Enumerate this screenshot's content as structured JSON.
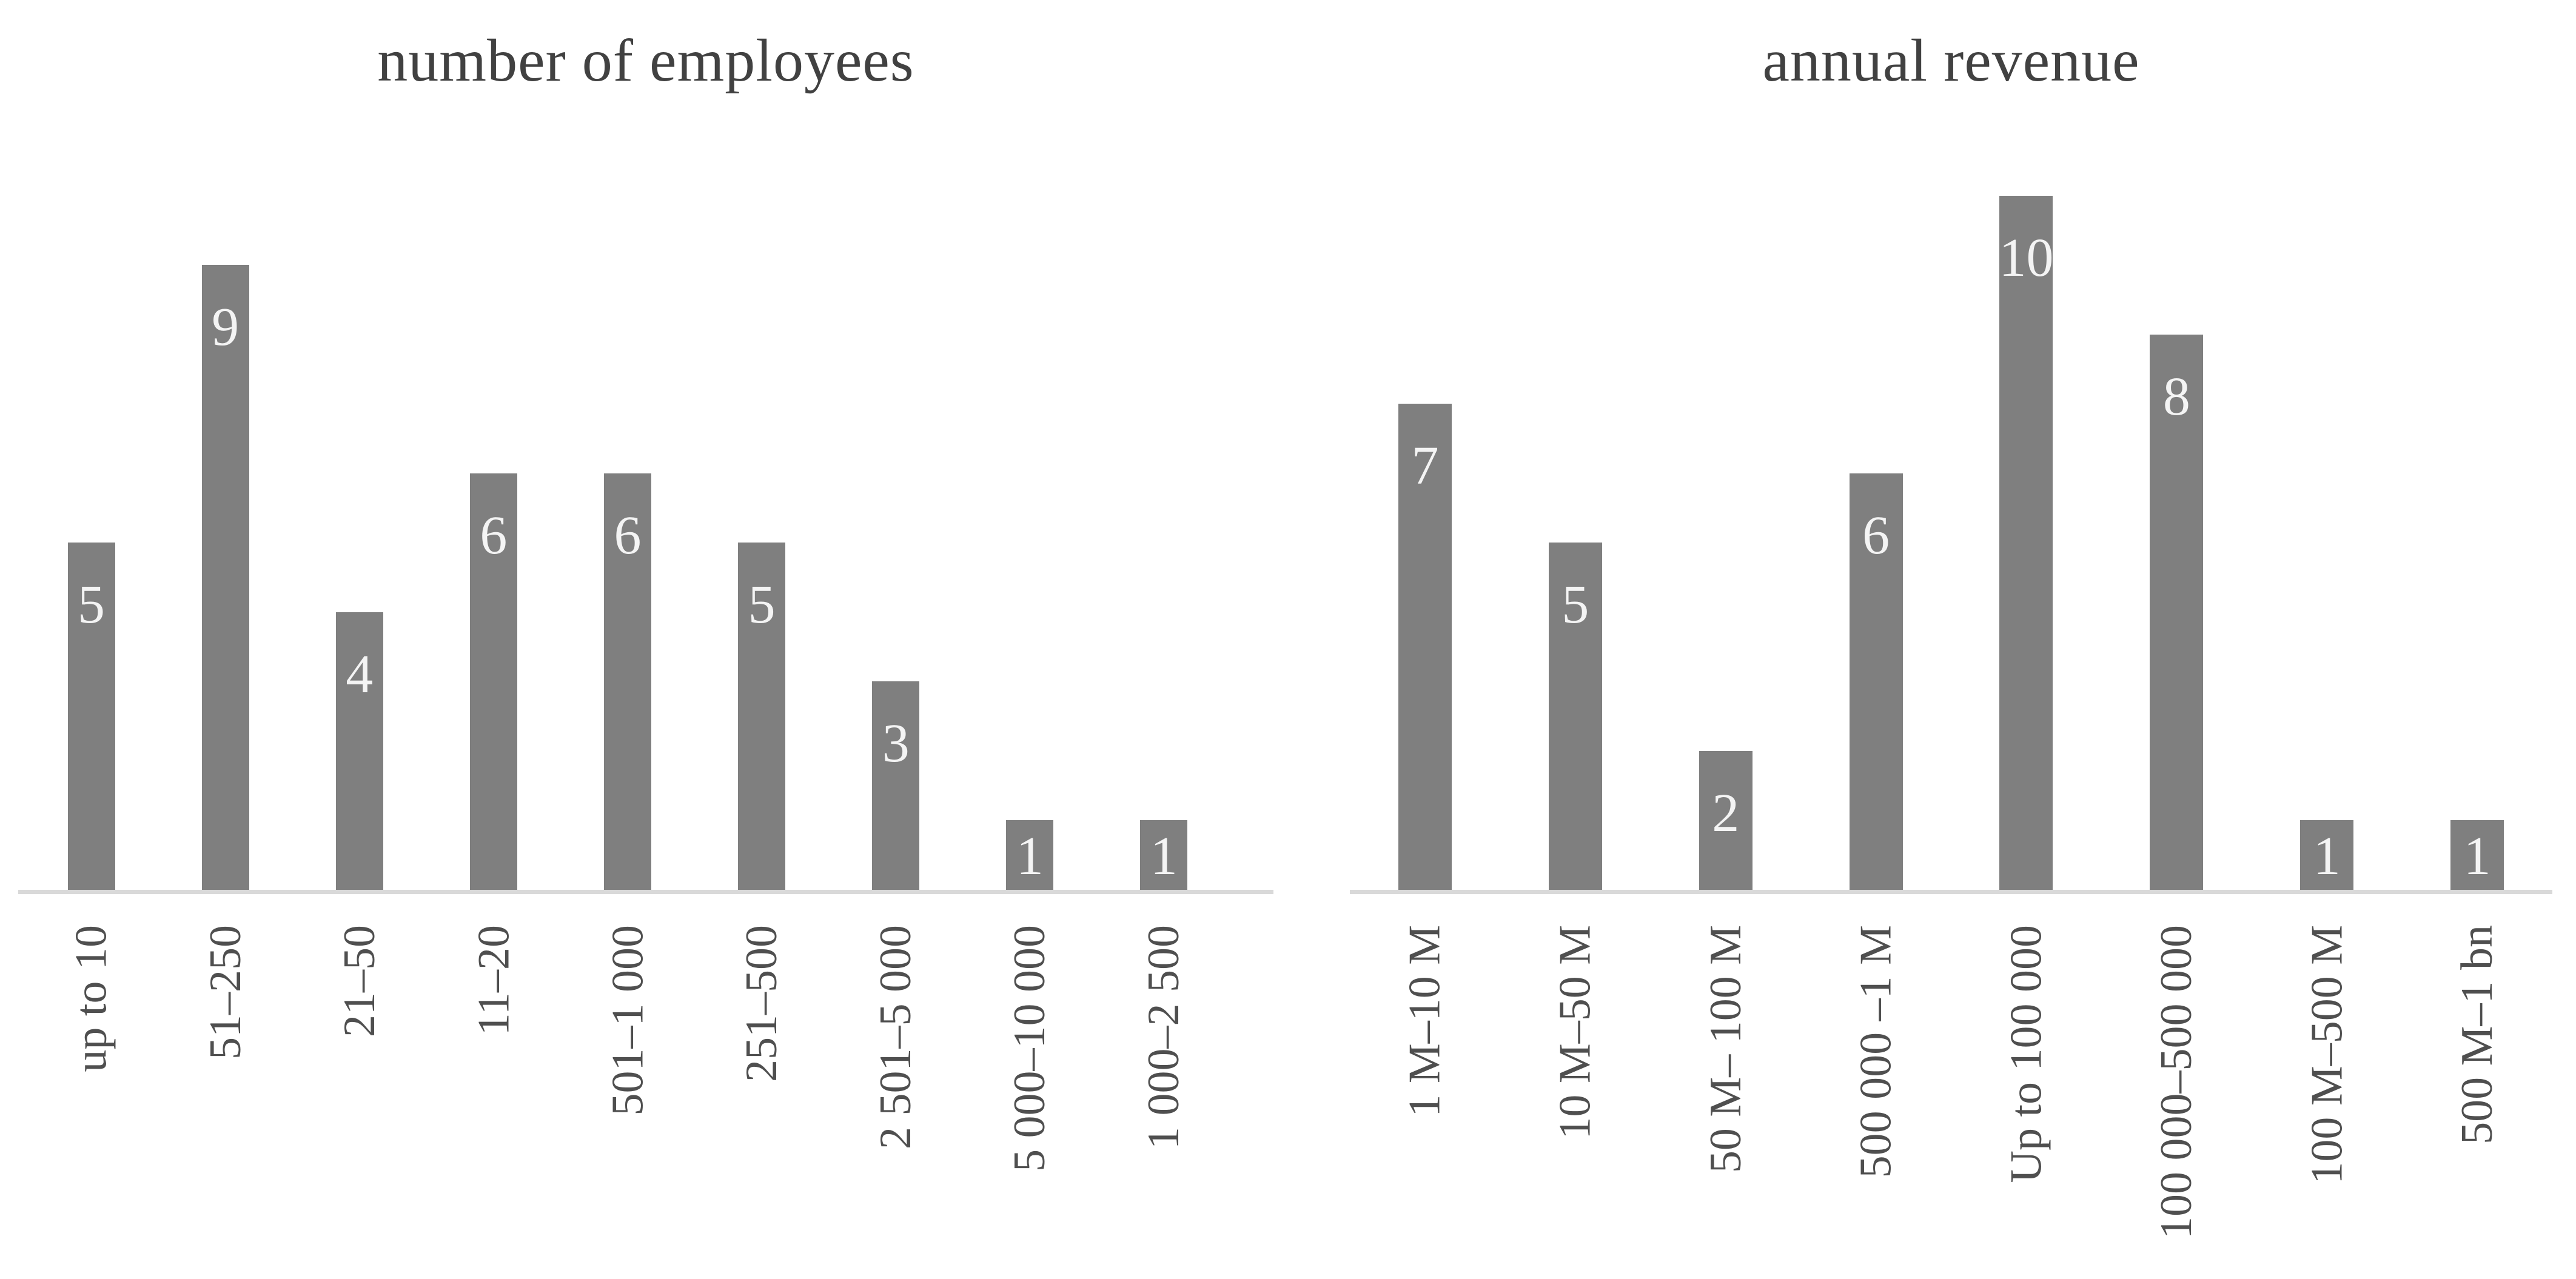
{
  "page": {
    "background_color": "#ffffff"
  },
  "chart_data": [
    {
      "type": "bar",
      "title": "number of employees",
      "categories": [
        "up to 10",
        "51–250",
        "21–50",
        "11–20",
        "501–1 000",
        "251–500",
        "2 501–5 000",
        "5 000–10 000",
        "1 000–2 500"
      ],
      "values": [
        5,
        9,
        4,
        6,
        6,
        5,
        3,
        1,
        1
      ],
      "xlabel": "",
      "ylabel": "",
      "ylim": [
        0,
        10
      ],
      "grid": false,
      "legend": false,
      "orientation": "vertical",
      "category_label_rotation_deg": 90,
      "value_labels_position": "inside-end",
      "bar_color": "#7f7f7f",
      "value_label_color": "#f4f4f4",
      "axis_line_color": "#d9d9d9",
      "title_color": "#414141",
      "category_label_color": "#4f4f4f"
    },
    {
      "type": "bar",
      "title": "annual revenue",
      "categories": [
        "1 M–10 M",
        "10 M–50 M",
        "50 M– 100 M",
        "500 000 –1 M",
        "Up to 100 000",
        "100 000–500 000",
        "100 M–500 M",
        "500 M–1 bn"
      ],
      "values": [
        7,
        5,
        2,
        6,
        10,
        8,
        1,
        1
      ],
      "xlabel": "",
      "ylabel": "",
      "ylim": [
        0,
        10
      ],
      "grid": false,
      "legend": false,
      "orientation": "vertical",
      "category_label_rotation_deg": 90,
      "value_labels_position": "inside-end",
      "bar_color": "#7f7f7f",
      "value_label_color": "#f4f4f4",
      "axis_line_color": "#d9d9d9",
      "title_color": "#414141",
      "category_label_color": "#4f4f4f"
    }
  ]
}
